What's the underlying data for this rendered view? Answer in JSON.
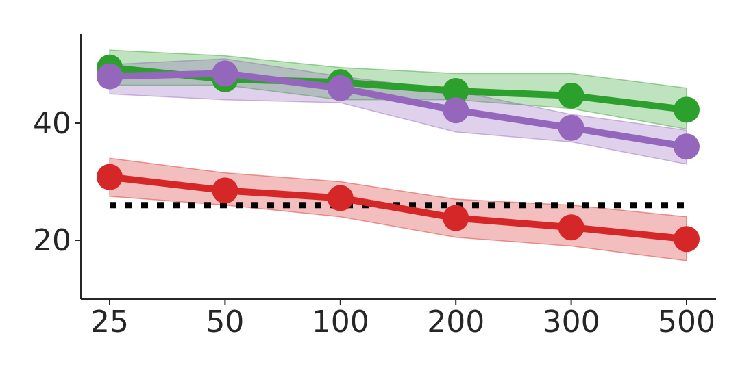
{
  "chart_data": {
    "type": "line",
    "title": "",
    "xlabel": "",
    "ylabel": "",
    "categories": [
      "25",
      "50",
      "100",
      "200",
      "300",
      "500"
    ],
    "y_ticks": [
      20,
      40
    ],
    "ylim": [
      10,
      55
    ],
    "grid": false,
    "legend": "none",
    "series": [
      {
        "color": "#2ca02c",
        "values": [
          49.5,
          47.5,
          47.0,
          45.5,
          44.7,
          42.3
        ],
        "band_upper": [
          52.5,
          51.5,
          49.5,
          48.5,
          48.5,
          46.0
        ],
        "band_lower": [
          46.5,
          46.5,
          44.0,
          44.0,
          42.5,
          39.0
        ]
      },
      {
        "color": "#9467bd",
        "values": [
          48.0,
          48.5,
          46.0,
          42.2,
          39.2,
          36.0
        ],
        "band_upper": [
          50.0,
          51.0,
          48.0,
          45.5,
          41.5,
          38.8
        ],
        "band_lower": [
          45.0,
          44.0,
          43.5,
          38.5,
          36.8,
          33.0
        ]
      },
      {
        "color": "#d62728",
        "values": [
          30.8,
          28.5,
          27.2,
          23.8,
          22.2,
          20.2
        ],
        "band_upper": [
          34.0,
          31.5,
          30.0,
          27.0,
          26.0,
          24.0
        ],
        "band_lower": [
          27.5,
          26.0,
          24.0,
          20.5,
          19.0,
          16.5
        ]
      }
    ],
    "reference_line": {
      "value": 26.0,
      "style": "dotted",
      "color": "#000000"
    }
  }
}
